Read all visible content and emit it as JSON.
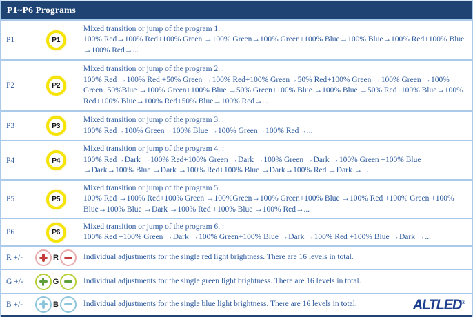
{
  "header": {
    "title": "P1~P6 Programs"
  },
  "rows": [
    {
      "label": "P1",
      "icon_text": "P1",
      "title": "Mixed transition or jump of the program 1. :",
      "body": "100% Red→100% Red+100% Green →100% Green→100% Green+100% Blue→100% Blue→100% Red+100% Blue →100% Red→..."
    },
    {
      "label": "P2",
      "icon_text": "P2",
      "title": "Mixed transition or jump of the program 2. :",
      "body": "100% Red →100% Red +50% Green →100% Red+100% Green→50% Red+100% Green →100% Green →100% Green+50%Blue →100% Green+100% Blue →50% Green+100% Blue →100% Blue →50% Red+100% Blue→100% Red+100% Blue→100% Red+50% Blue→100% Red→..."
    },
    {
      "label": "P3",
      "icon_text": "P3",
      "title": "Mixed transition or jump of the program 3. :",
      "body": "100% Red→100% Green→100% Blue →100% Green→100% Red→..."
    },
    {
      "label": "P4",
      "icon_text": "P4",
      "title": "Mixed transition or jump of the program 4. :",
      "body": "100% Red→Dark →100% Red+100% Green →Dark →100% Green →Dark →100% Green +100% Blue →Dark→100% Blue →Dark →100% Red+100% Blue →Dark→100% Red →Dark →..."
    },
    {
      "label": "P5",
      "icon_text": "P5",
      "title": "Mixed transition or jump of the program 5. :",
      "body": "100% Red →100% Red+100% Green →100%Green→100% Green+100% Blue →100% Red +100% Green +100% Blue→100% Blue →Dark →100% Red +100% Blue →100% Red→..."
    },
    {
      "label": "P6",
      "icon_text": "P6",
      "title": "Mixed transition or jump of the program 6. :",
      "body": "100% Red +100% Green →Dark →100% Green+100% Blue →Dark →100% Red +100% Blue →Dark →..."
    },
    {
      "label": "R +/-",
      "icon_letter": "R",
      "body": "Individual adjustments for the single red light brightness. There are 16 levels in total."
    },
    {
      "label": "G +/-",
      "icon_letter": "G",
      "body": "Individual adjustments for the single green light brightness. There are 16 levels in total."
    },
    {
      "label": "B +/-",
      "icon_letter": "B",
      "body": "Individual adjustments for the single blue light brightness. There are 16 levels in total."
    }
  ],
  "logo": {
    "text": "ALTLED",
    "reg": "®"
  },
  "colors": {
    "header_bg": "#1f4473",
    "body_text": "#2e5b9e",
    "row_border": "#a9cbe9",
    "program_ring": "#f6e409",
    "red_ring": "#eaabab",
    "red_symbol": "#c43b3b",
    "green_ring": "#b6d138",
    "green_symbol": "#5f9e3c",
    "blue_ring": "#8cc5dc",
    "logo_blue": "#1c3f8e"
  }
}
